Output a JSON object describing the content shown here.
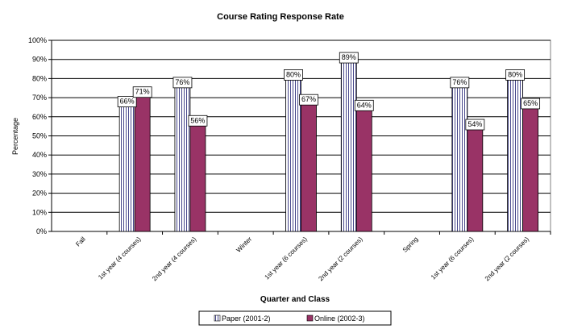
{
  "chart_data": {
    "type": "bar",
    "title": "Course Rating Response Rate",
    "xlabel": "Quarter and Class",
    "ylabel": "Percentage",
    "ylim": [
      0,
      100
    ],
    "yticks": [
      "0%",
      "10%",
      "20%",
      "30%",
      "40%",
      "50%",
      "60%",
      "70%",
      "80%",
      "90%",
      "100%"
    ],
    "categories": [
      "Fall",
      "1st year (4 courses)",
      "2nd year (4 courses)",
      "Winter",
      "1st year (6 courses)",
      "2nd year (2 courses)",
      "Spring",
      "1st year (6 courses)",
      "2nd year (2 courses)"
    ],
    "series": [
      {
        "name": "Paper (2001-2)",
        "values": [
          null,
          66,
          76,
          null,
          80,
          89,
          null,
          76,
          80
        ],
        "labels": [
          "",
          "66%",
          "76%",
          "",
          "80%",
          "89%",
          "",
          "76%",
          "80%"
        ],
        "color": "#ffffff",
        "pattern": "vertical-stripes"
      },
      {
        "name": "Online (2002-3)",
        "values": [
          null,
          71,
          56,
          null,
          67,
          64,
          null,
          54,
          65
        ],
        "labels": [
          "",
          "71%",
          "56%",
          "",
          "67%",
          "64%",
          "",
          "54%",
          "65%"
        ],
        "color": "#993366"
      }
    ],
    "grid": true,
    "legend": "bottom"
  }
}
